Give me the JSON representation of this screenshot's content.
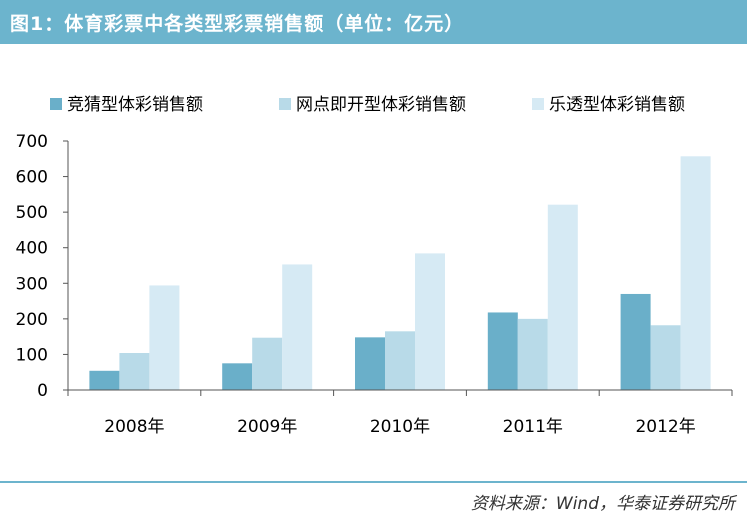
{
  "title": "图1：体育彩票中各类型彩票销售额（单位：亿元）",
  "source": "资料来源：Wind，华泰证券研究所",
  "chart_data": {
    "type": "bar",
    "categories": [
      "2008年",
      "2009年",
      "2010年",
      "2011年",
      "2012年"
    ],
    "series": [
      {
        "name": "竞猜型体彩销售额",
        "color": "#6aafc9",
        "values": [
          54,
          75,
          148,
          218,
          270
        ]
      },
      {
        "name": "网点即开型体彩销售额",
        "color": "#b8dae8",
        "values": [
          104,
          147,
          165,
          200,
          182
        ]
      },
      {
        "name": "乐透型体彩销售额",
        "color": "#d6eaf4",
        "values": [
          294,
          353,
          384,
          521,
          657
        ]
      }
    ],
    "ylim": [
      0,
      700
    ],
    "yticks": [
      0,
      100,
      200,
      300,
      400,
      500,
      600,
      700
    ],
    "ytick_labels": [
      "0",
      "100",
      "200",
      "300",
      "400",
      "500",
      "600",
      "700"
    ],
    "legend": "top",
    "grid": false
  }
}
